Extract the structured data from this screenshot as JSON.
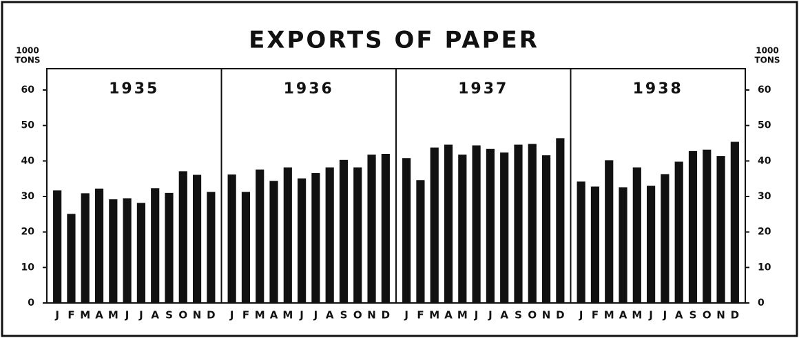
{
  "chart_data": {
    "type": "bar",
    "title": "EXPORTS OF PAPER",
    "y_label": [
      "1000",
      "TONS"
    ],
    "y2_label": [
      "1000",
      "TONS"
    ],
    "categories": [
      "J",
      "F",
      "M",
      "A",
      "M",
      "J",
      "J",
      "A",
      "S",
      "O",
      "N",
      "D"
    ],
    "series": [
      {
        "name": "1935",
        "color": "#111111",
        "values": [
          31.7,
          25.1,
          30.9,
          32.2,
          29.2,
          29.5,
          28.2,
          32.3,
          31,
          37.1,
          36.1,
          31.3
        ]
      },
      {
        "name": "1936",
        "color": "#111111",
        "values": [
          36.2,
          31.3,
          37.6,
          34.4,
          38.2,
          35.1,
          36.6,
          38.2,
          40.3,
          38.2,
          41.8,
          42
        ]
      },
      {
        "name": "1937",
        "color": "#111111",
        "values": [
          40.8,
          34.6,
          43.8,
          44.6,
          41.8,
          44.4,
          43.4,
          42.4,
          44.6,
          44.8,
          41.6,
          46.4
        ]
      },
      {
        "name": "1938",
        "color": "#111111",
        "values": [
          34.2,
          32.8,
          40.2,
          32.6,
          38.2,
          33,
          36.3,
          39.8,
          42.8,
          43.2,
          41.4,
          45.4
        ]
      }
    ],
    "ylim": [
      0,
      66
    ],
    "yticks": [
      0,
      10,
      20,
      30,
      40,
      50,
      60
    ],
    "y2lim": [
      0,
      66
    ],
    "y2ticks": [
      0,
      10,
      20,
      30,
      40,
      50,
      60
    ]
  }
}
